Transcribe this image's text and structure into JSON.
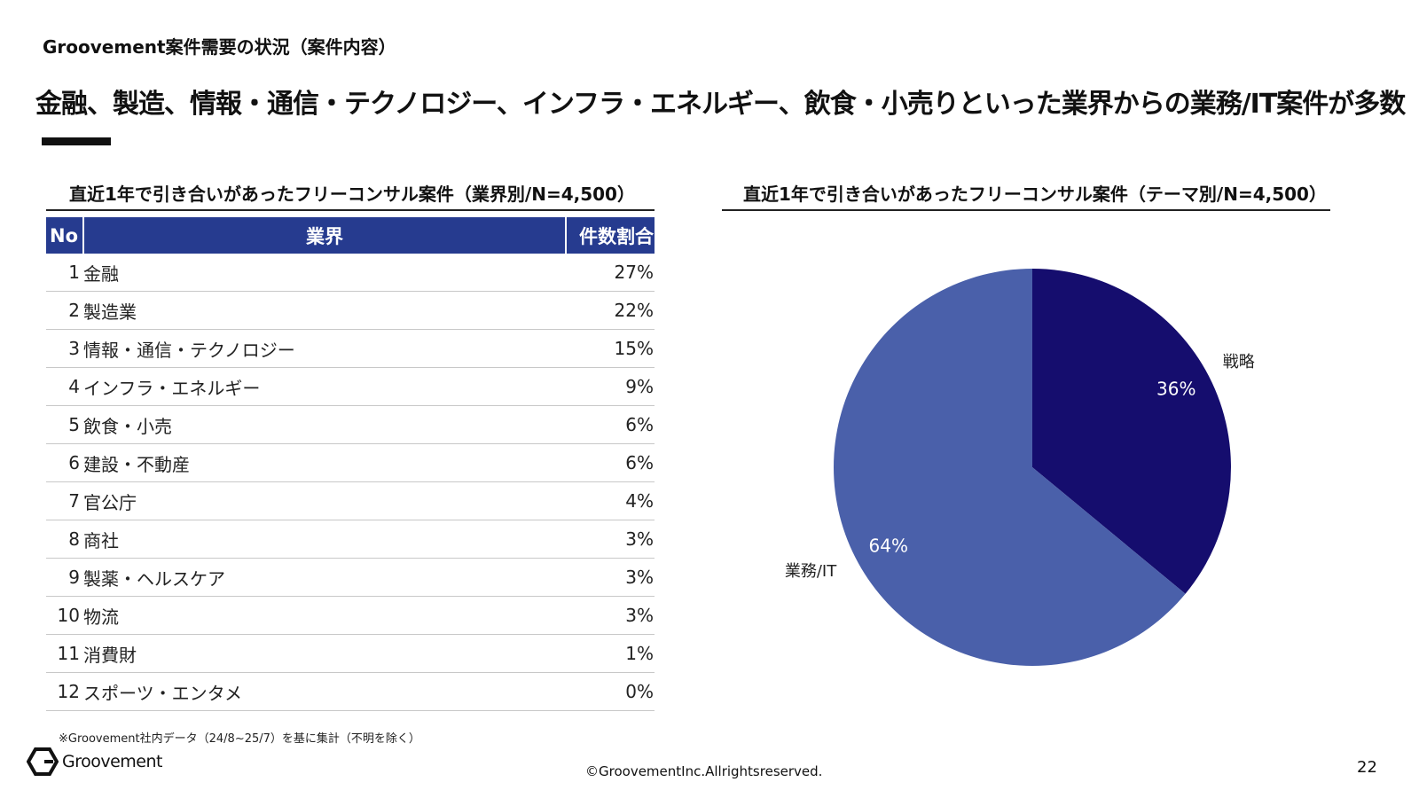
{
  "section_title": "Groovement案件需要の状況（案件内容）",
  "headline": "金融、製造、情報・通信・テクノロジー、インフラ・エネルギー、飲食・小売りといった業界からの業務/IT案件が多数",
  "colors": {
    "header_bg": "#263b8f",
    "pie_strategy": "#150d6e",
    "pie_business_it": "#4a60aa"
  },
  "chart_data": [
    {
      "type": "table",
      "title": "直近1年で引き合いがあったフリーコンサル案件（業界別/N=4,500）",
      "columns": [
        "No",
        "業界",
        "件数割合"
      ],
      "rows": [
        {
          "no": "1",
          "industry": "金融",
          "share": "27%"
        },
        {
          "no": "2",
          "industry": "製造業",
          "share": "22%"
        },
        {
          "no": "3",
          "industry": "情報・通信・テクノロジー",
          "share": "15%"
        },
        {
          "no": "4",
          "industry": "インフラ・エネルギー",
          "share": "9%"
        },
        {
          "no": "5",
          "industry": "飲食・小売",
          "share": "6%"
        },
        {
          "no": "6",
          "industry": "建設・不動産",
          "share": "6%"
        },
        {
          "no": "7",
          "industry": "官公庁",
          "share": "4%"
        },
        {
          "no": "8",
          "industry": "商社",
          "share": "3%"
        },
        {
          "no": "9",
          "industry": "製薬・ヘルスケア",
          "share": "3%"
        },
        {
          "no": "10",
          "industry": "物流",
          "share": "3%"
        },
        {
          "no": "11",
          "industry": "消費財",
          "share": "1%"
        },
        {
          "no": "12",
          "industry": "スポーツ・エンタメ",
          "share": "0%"
        }
      ]
    },
    {
      "type": "pie",
      "title": "直近1年で引き合いがあったフリーコンサル案件（テーマ別/N=4,500）",
      "slices": [
        {
          "label": "戦略",
          "value": 36,
          "value_label": "36%",
          "color": "#150d6e"
        },
        {
          "label": "業務/IT",
          "value": 64,
          "value_label": "64%",
          "color": "#4a60aa"
        }
      ],
      "start": "12 o'clock, clockwise"
    }
  ],
  "footnote": "※Groovement社内データ（24/8~25/7）を基に集計（不明を除く）",
  "brand_name": "Groovement",
  "copyright": "©GroovementInc.Allrightsreserved.",
  "page_number": "22"
}
